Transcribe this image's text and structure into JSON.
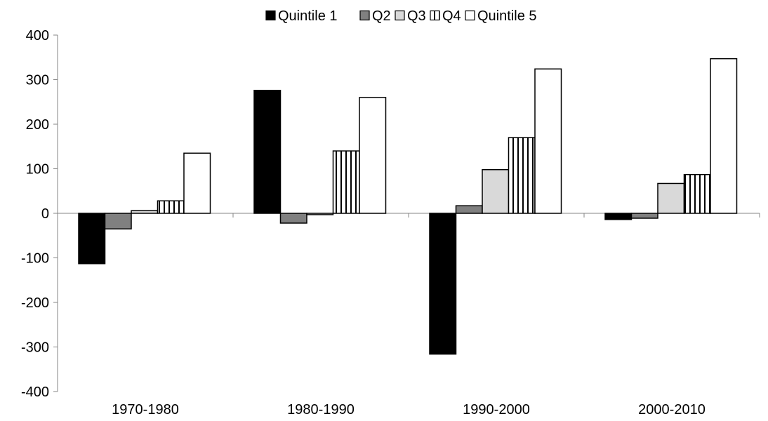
{
  "chart_data": {
    "type": "bar",
    "title": "",
    "xlabel": "",
    "ylabel": "",
    "categories": [
      "1970-1980",
      "1980-1990",
      "1990-2000",
      "2000-2010"
    ],
    "series": [
      {
        "name": "Quintile 1",
        "fill": "#000000",
        "pattern": "solid",
        "values": [
          -113,
          276,
          -316,
          -14
        ]
      },
      {
        "name": "Q2",
        "fill": "#808080",
        "pattern": "solid",
        "values": [
          -35,
          -22,
          17,
          -11
        ]
      },
      {
        "name": "Q3",
        "fill": "#d9d9d9",
        "pattern": "solid",
        "values": [
          6,
          -3,
          98,
          67
        ]
      },
      {
        "name": "Q4",
        "fill": "#ffffff",
        "pattern": "vertical-stripes",
        "values": [
          28,
          140,
          170,
          87
        ]
      },
      {
        "name": "Quintile 5",
        "fill": "#ffffff",
        "pattern": "solid",
        "values": [
          135,
          260,
          324,
          347
        ]
      }
    ],
    "ylim": [
      -400,
      400
    ],
    "yticks": [
      -400,
      -300,
      -200,
      -100,
      0,
      100,
      200,
      300,
      400
    ],
    "grid": false,
    "legend_position": "top"
  }
}
